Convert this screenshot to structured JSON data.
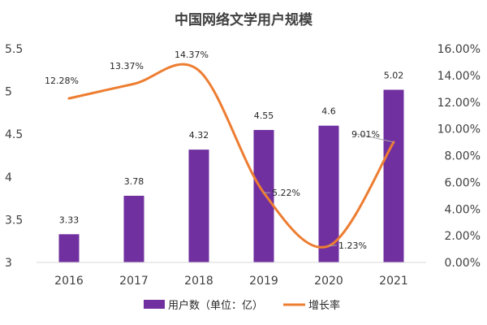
{
  "chart_data": {
    "type": "bar",
    "title": "中国网络文学用户规模",
    "categories": [
      "2016",
      "2017",
      "2018",
      "2019",
      "2020",
      "2021"
    ],
    "series": [
      {
        "name": "用户数（单位：亿）",
        "type": "bar",
        "axis": "left",
        "color": "#7030a0",
        "values": [
          3.33,
          3.78,
          4.32,
          4.55,
          4.6,
          5.02
        ],
        "labels": [
          "3.33",
          "3.78",
          "4.32",
          "4.55",
          "4.6",
          "5.02"
        ]
      },
      {
        "name": "增长率",
        "type": "line",
        "axis": "right",
        "color": "#ed7d31",
        "smooth": true,
        "values": [
          12.28,
          13.37,
          14.37,
          5.22,
          1.23,
          9.01
        ],
        "labels": [
          "12.28%",
          "13.37%",
          "14.37%",
          "5.22%",
          "1.23%",
          "9.01%"
        ]
      }
    ],
    "y_left": {
      "min": 3,
      "max": 5.5,
      "ticks": [
        "3",
        "3.5",
        "4",
        "4.5",
        "5",
        "5.5"
      ],
      "tick_values": [
        3,
        3.5,
        4,
        4.5,
        5,
        5.5
      ]
    },
    "y_right": {
      "min": 0,
      "max": 16,
      "ticks": [
        "0.00%",
        "2.00%",
        "4.00%",
        "6.00%",
        "8.00%",
        "10.00%",
        "12.00%",
        "14.00%",
        "16.00%"
      ],
      "tick_values": [
        0,
        2,
        4,
        6,
        8,
        10,
        12,
        14,
        16
      ]
    },
    "grid": false,
    "legend_position": "bottom"
  }
}
